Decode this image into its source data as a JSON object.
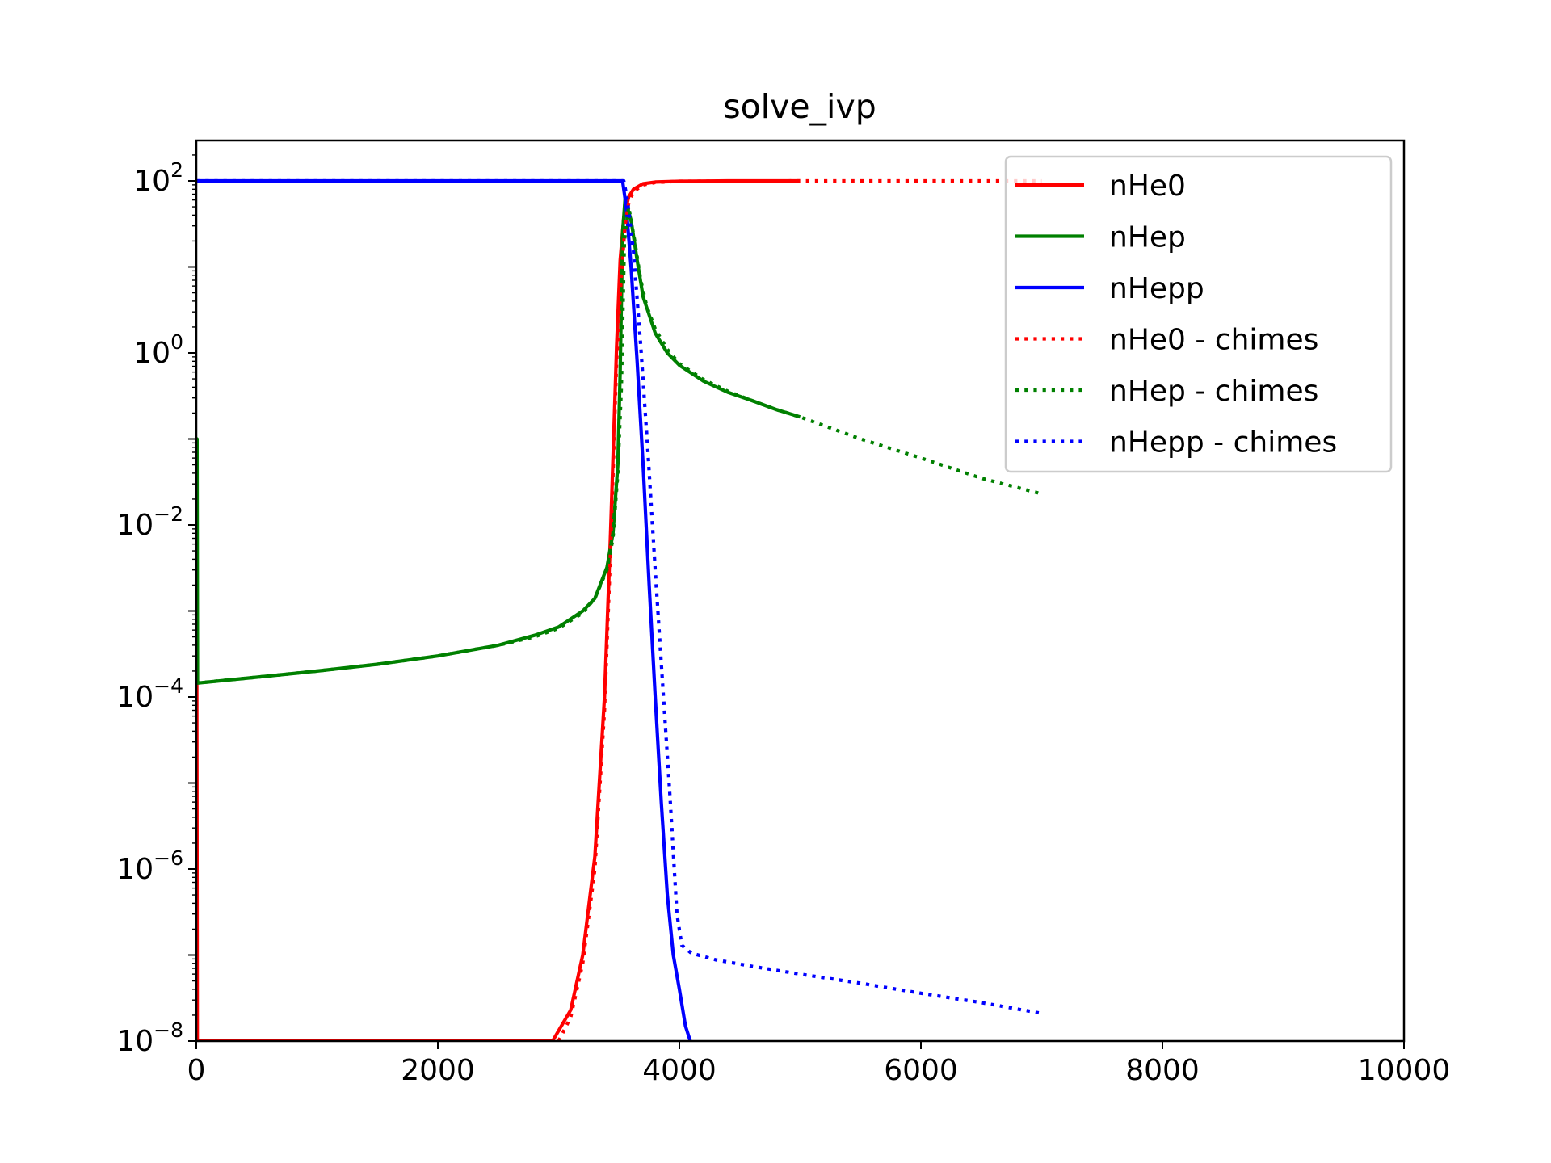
{
  "chart_data": {
    "type": "line",
    "title": "solve_ivp",
    "xlabel": "",
    "ylabel": "",
    "xlim": [
      0,
      10000
    ],
    "ylim": [
      1e-08,
      300
    ],
    "yscale": "log",
    "xticks": [
      0,
      2000,
      4000,
      6000,
      8000,
      10000
    ],
    "xtick_labels": [
      "0",
      "2000",
      "4000",
      "6000",
      "8000",
      "10000"
    ],
    "yticks": [
      {
        "base": "10",
        "exp": "2",
        "value": 100
      },
      {
        "base": "10",
        "exp": "0",
        "value": 1
      },
      {
        "base": "10",
        "exp": "−2",
        "value": 0.01
      },
      {
        "base": "10",
        "exp": "−4",
        "value": 0.0001
      },
      {
        "base": "10",
        "exp": "−6",
        "value": 1e-06
      },
      {
        "base": "10",
        "exp": "−8",
        "value": 1e-08
      }
    ],
    "grid": false,
    "legend_position": "upper right",
    "series": [
      {
        "name": "nHe0",
        "color": "#ff0000",
        "style": "solid",
        "x": [
          0,
          4,
          8,
          2950,
          3100,
          3200,
          3300,
          3380,
          3430,
          3480,
          3510,
          3540,
          3580,
          3620,
          3700,
          3800,
          4000,
          4400,
          5000
        ],
        "y": [
          1e-08,
          0.0002,
          1e-08,
          1e-08,
          2.3e-08,
          1e-07,
          1.4e-06,
          0.0001,
          0.008,
          1.2,
          12,
          38,
          65,
          80,
          93,
          97,
          99,
          100,
          100
        ]
      },
      {
        "name": "nHep",
        "color": "#008000",
        "style": "solid",
        "x": [
          0,
          6,
          10,
          500,
          1000,
          1500,
          2000,
          2500,
          2800,
          3000,
          3200,
          3300,
          3400,
          3450,
          3490,
          3510,
          3530,
          3550,
          3600,
          3650,
          3700,
          3800,
          3900,
          4000,
          4200,
          4400,
          4600,
          4800,
          5000
        ],
        "y": [
          0.1,
          0.1,
          0.000145,
          0.00017,
          0.0002,
          0.00024,
          0.0003,
          0.0004,
          0.00052,
          0.00065,
          0.001,
          0.0014,
          0.0032,
          0.008,
          0.05,
          0.6,
          25,
          60,
          35,
          12,
          4.5,
          1.7,
          1.0,
          0.72,
          0.47,
          0.35,
          0.28,
          0.22,
          0.18
        ]
      },
      {
        "name": "nHepp",
        "color": "#0000ff",
        "style": "solid",
        "x": [
          0,
          3500,
          3530,
          3560,
          3600,
          3650,
          3700,
          3750,
          3800,
          3850,
          3900,
          3950,
          4000,
          4050,
          4090
        ],
        "y": [
          100,
          100,
          100,
          50,
          10,
          0.8,
          0.05,
          0.002,
          0.0001,
          6e-06,
          5e-07,
          1e-07,
          4e-08,
          1.5e-08,
          1e-08
        ]
      },
      {
        "name": "nHe0 - chimes",
        "color": "#ff0000",
        "style": "dotted",
        "x": [
          3000,
          3100,
          3200,
          3300,
          3380,
          3430,
          3480,
          3520,
          3550,
          3580,
          3620,
          3700,
          3800,
          4000,
          5000,
          6000,
          7000
        ],
        "y": [
          1e-08,
          1.9e-08,
          8e-08,
          1e-06,
          7e-05,
          0.005,
          0.8,
          8,
          30,
          55,
          75,
          90,
          96,
          99,
          100,
          100,
          100
        ]
      },
      {
        "name": "nHep - chimes",
        "color": "#008000",
        "style": "dotted",
        "x": [
          0,
          500,
          1000,
          1500,
          2000,
          2500,
          2800,
          3000,
          3200,
          3300,
          3400,
          3450,
          3490,
          3520,
          3545,
          3580,
          3630,
          3680,
          3730,
          3800,
          3900,
          4000,
          4200,
          4400,
          4600,
          4800,
          5000,
          5500,
          6000,
          6500,
          7000
        ],
        "y": [
          0.000145,
          0.00017,
          0.0002,
          0.00024,
          0.0003,
          0.0004,
          0.0005,
          0.00063,
          0.00095,
          0.0014,
          0.003,
          0.007,
          0.04,
          0.4,
          20,
          50,
          20,
          7,
          3.5,
          1.9,
          1.1,
          0.75,
          0.49,
          0.36,
          0.28,
          0.22,
          0.18,
          0.1,
          0.06,
          0.035,
          0.023
        ]
      },
      {
        "name": "nHepp - chimes",
        "color": "#0000ff",
        "style": "dotted",
        "x": [
          0,
          3500,
          3540,
          3570,
          3620,
          3680,
          3740,
          3800,
          3860,
          3920,
          3980,
          4020,
          4100,
          4300,
          4600,
          5000,
          5500,
          6000,
          6500,
          7000
        ],
        "y": [
          100,
          100,
          100,
          60,
          15,
          1.2,
          0.07,
          0.003,
          0.00015,
          8e-06,
          3e-07,
          1.3e-07,
          1.05e-07,
          8.8e-08,
          7.4e-08,
          6e-08,
          4.7e-08,
          3.6e-08,
          2.8e-08,
          2.1e-08
        ]
      }
    ]
  }
}
